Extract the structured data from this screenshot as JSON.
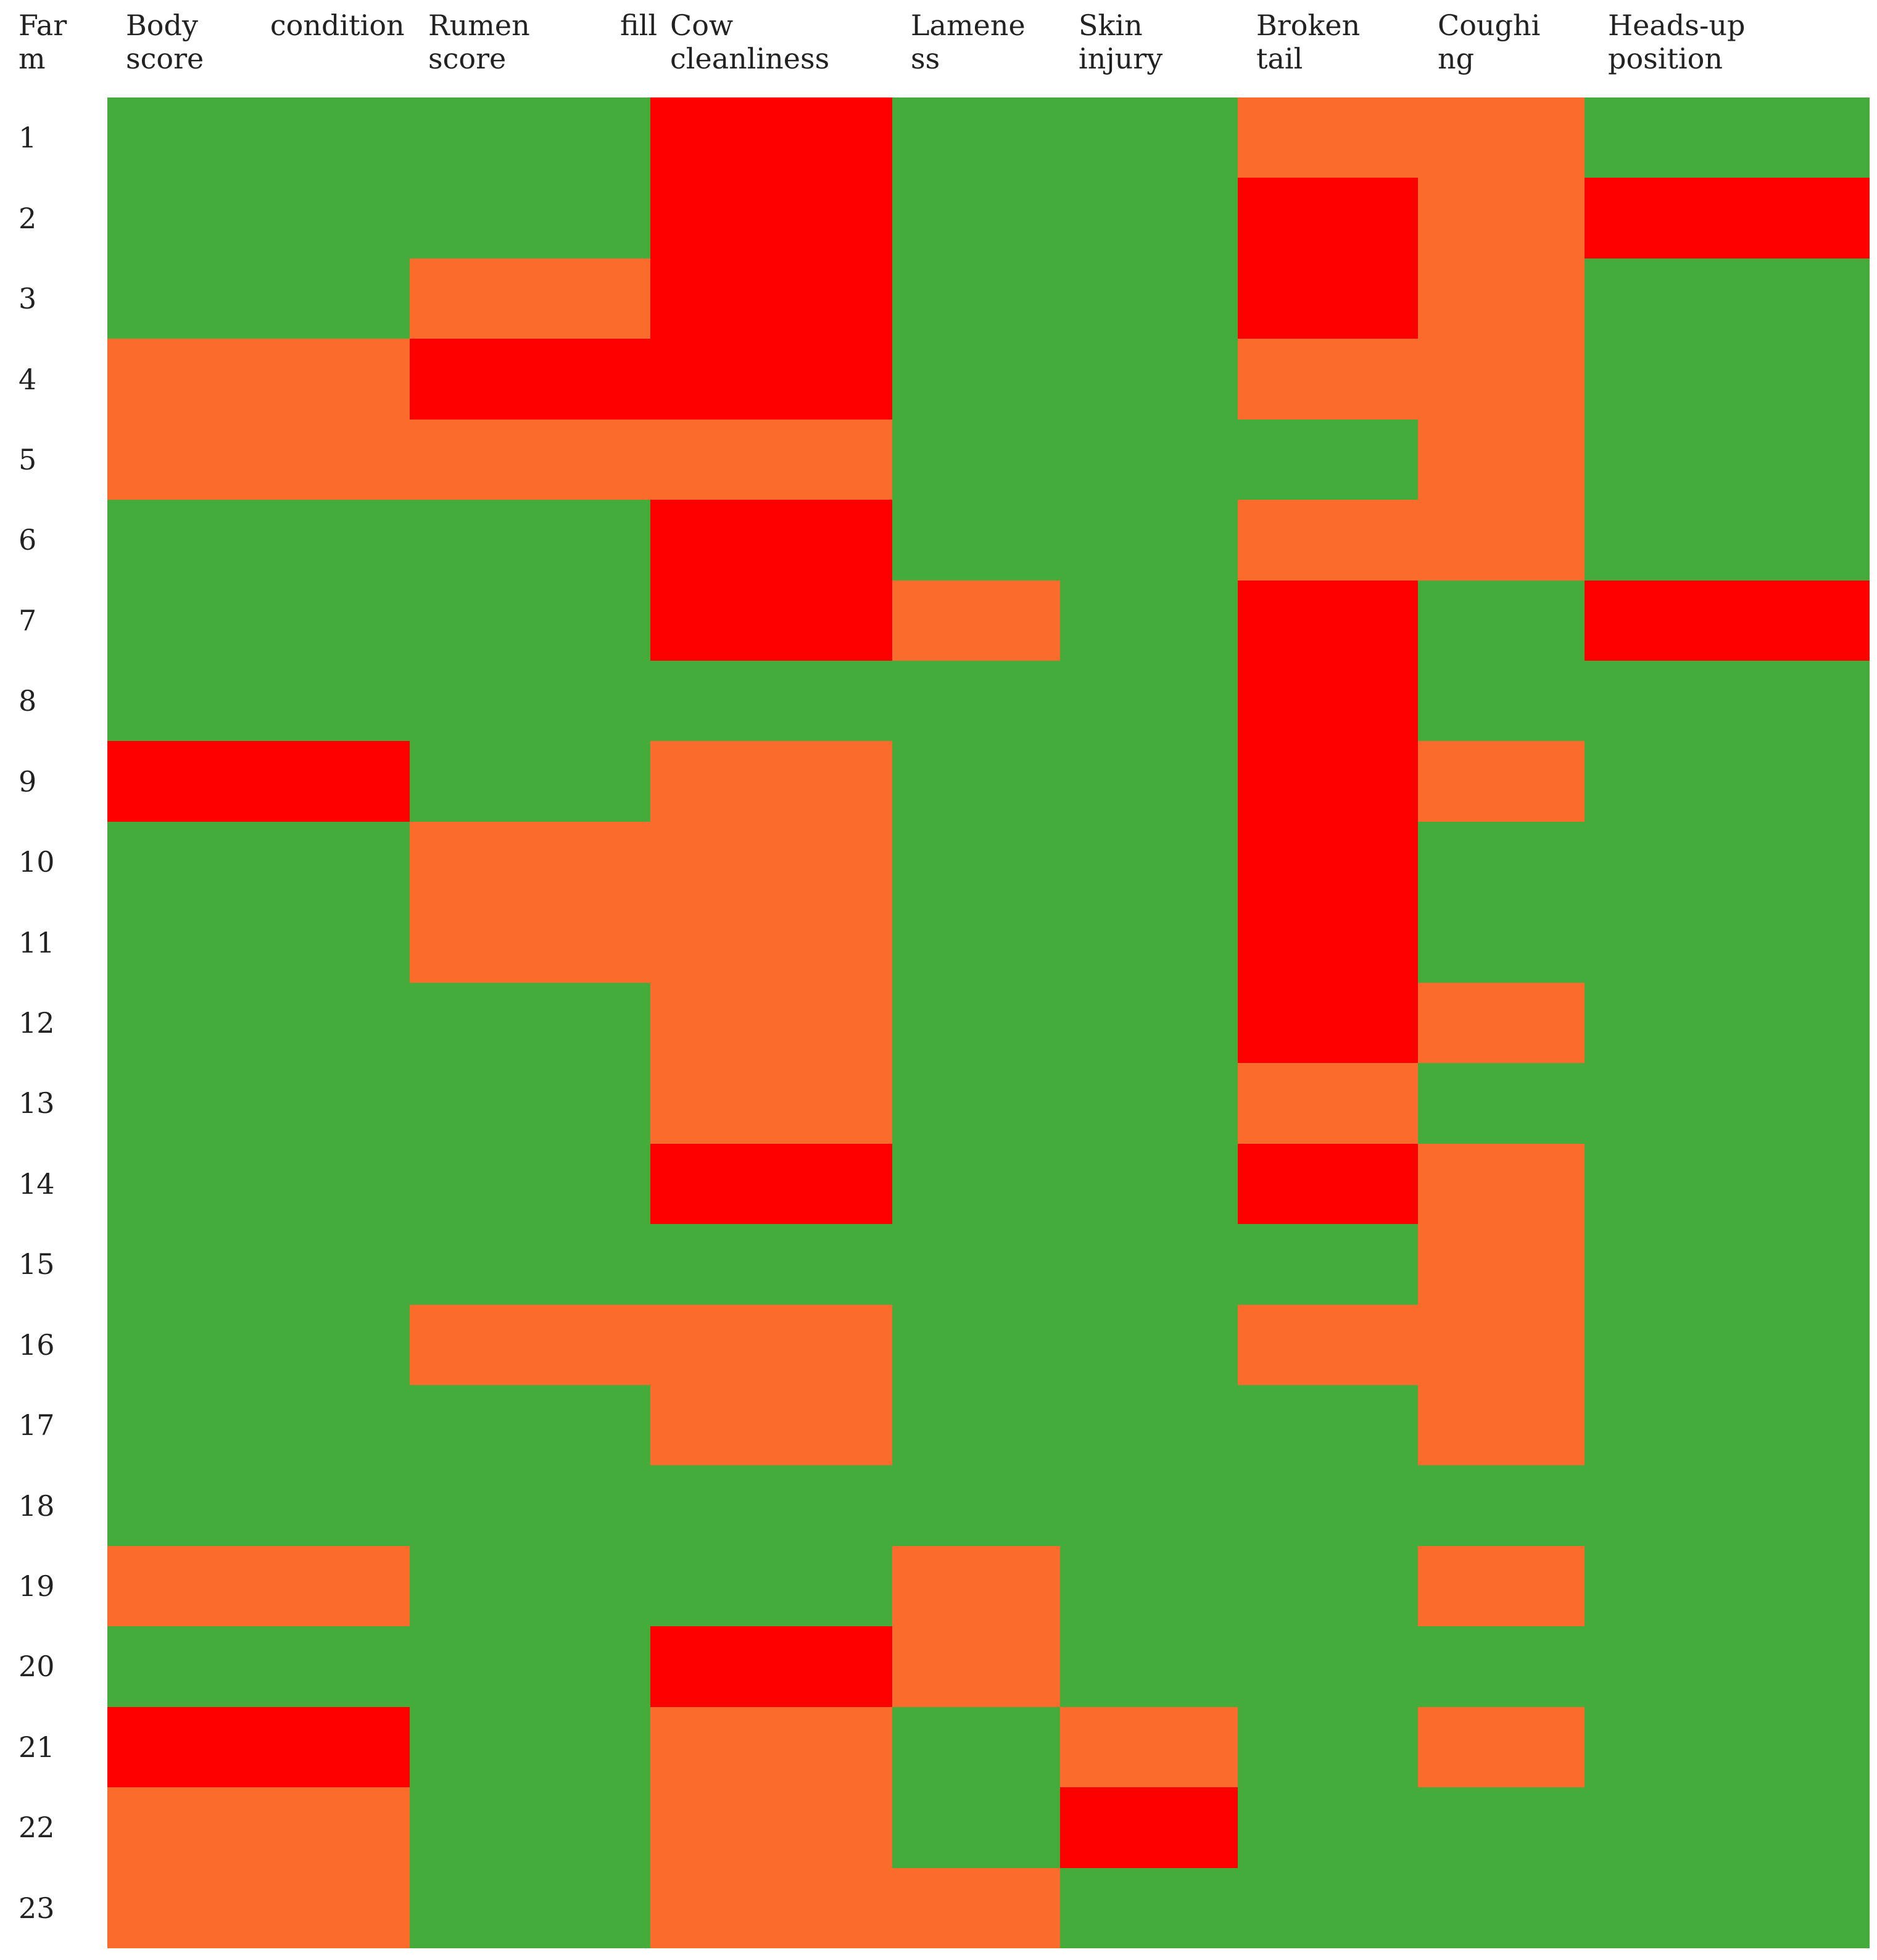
{
  "chart_data": {
    "type": "heatmap",
    "columns": [
      {
        "id": "farm",
        "lines": [
          "Far",
          "m"
        ]
      },
      {
        "id": "body_condition_score",
        "lines": [
          "Body        condition",
          "score"
        ]
      },
      {
        "id": "rumen_fill_score",
        "lines": [
          "Rumen          fill",
          "score"
        ]
      },
      {
        "id": "cow_cleanliness",
        "lines": [
          "Cow",
          "cleanliness"
        ]
      },
      {
        "id": "lameness",
        "lines": [
          "Lamene",
          "ss"
        ]
      },
      {
        "id": "skin_injury",
        "lines": [
          "Skin",
          "injury"
        ]
      },
      {
        "id": "broken_tail",
        "lines": [
          "Broken",
          "tail"
        ]
      },
      {
        "id": "coughing",
        "lines": [
          "Coughi",
          "ng"
        ]
      },
      {
        "id": "heads_up_position",
        "lines": [
          "Heads-up",
          "position"
        ]
      }
    ],
    "farms": [
      "1",
      "2",
      "3",
      "4",
      "5",
      "6",
      "7",
      "8",
      "9",
      "10",
      "11",
      "12",
      "13",
      "14",
      "15",
      "16",
      "17",
      "18",
      "19",
      "20",
      "21",
      "22",
      "23"
    ],
    "colors": {
      "G": "#45ab3a",
      "O": "#fb6c2c",
      "R": "#fc0000"
    },
    "cells": [
      [
        "G",
        "G",
        "R",
        "G",
        "G",
        "O",
        "O",
        "G"
      ],
      [
        "G",
        "G",
        "R",
        "G",
        "G",
        "R",
        "O",
        "R"
      ],
      [
        "G",
        "O",
        "R",
        "G",
        "G",
        "R",
        "O",
        "G"
      ],
      [
        "O",
        "R",
        "R",
        "G",
        "G",
        "O",
        "O",
        "G"
      ],
      [
        "O",
        "O",
        "O",
        "G",
        "G",
        "G",
        "O",
        "G"
      ],
      [
        "G",
        "G",
        "R",
        "G",
        "G",
        "O",
        "O",
        "G"
      ],
      [
        "G",
        "G",
        "R",
        "O",
        "G",
        "R",
        "G",
        "R"
      ],
      [
        "G",
        "G",
        "G",
        "G",
        "G",
        "R",
        "G",
        "G"
      ],
      [
        "R",
        "G",
        "O",
        "G",
        "G",
        "R",
        "O",
        "G"
      ],
      [
        "G",
        "O",
        "O",
        "G",
        "G",
        "R",
        "G",
        "G"
      ],
      [
        "G",
        "O",
        "O",
        "G",
        "G",
        "R",
        "G",
        "G"
      ],
      [
        "G",
        "G",
        "O",
        "G",
        "G",
        "R",
        "O",
        "G"
      ],
      [
        "G",
        "G",
        "O",
        "G",
        "G",
        "O",
        "G",
        "G"
      ],
      [
        "G",
        "G",
        "R",
        "G",
        "G",
        "R",
        "O",
        "G"
      ],
      [
        "G",
        "G",
        "G",
        "G",
        "G",
        "G",
        "O",
        "G"
      ],
      [
        "G",
        "O",
        "O",
        "G",
        "G",
        "O",
        "O",
        "G"
      ],
      [
        "G",
        "G",
        "O",
        "G",
        "G",
        "G",
        "O",
        "G"
      ],
      [
        "G",
        "G",
        "G",
        "G",
        "G",
        "G",
        "G",
        "G"
      ],
      [
        "O",
        "G",
        "G",
        "O",
        "G",
        "G",
        "O",
        "G"
      ],
      [
        "G",
        "G",
        "R",
        "O",
        "G",
        "G",
        "G",
        "G"
      ],
      [
        "R",
        "G",
        "O",
        "G",
        "O",
        "G",
        "O",
        "G"
      ],
      [
        "O",
        "G",
        "O",
        "G",
        "R",
        "G",
        "G",
        "G"
      ],
      [
        "O",
        "G",
        "O",
        "O",
        "G",
        "G",
        "G",
        "G"
      ]
    ]
  }
}
